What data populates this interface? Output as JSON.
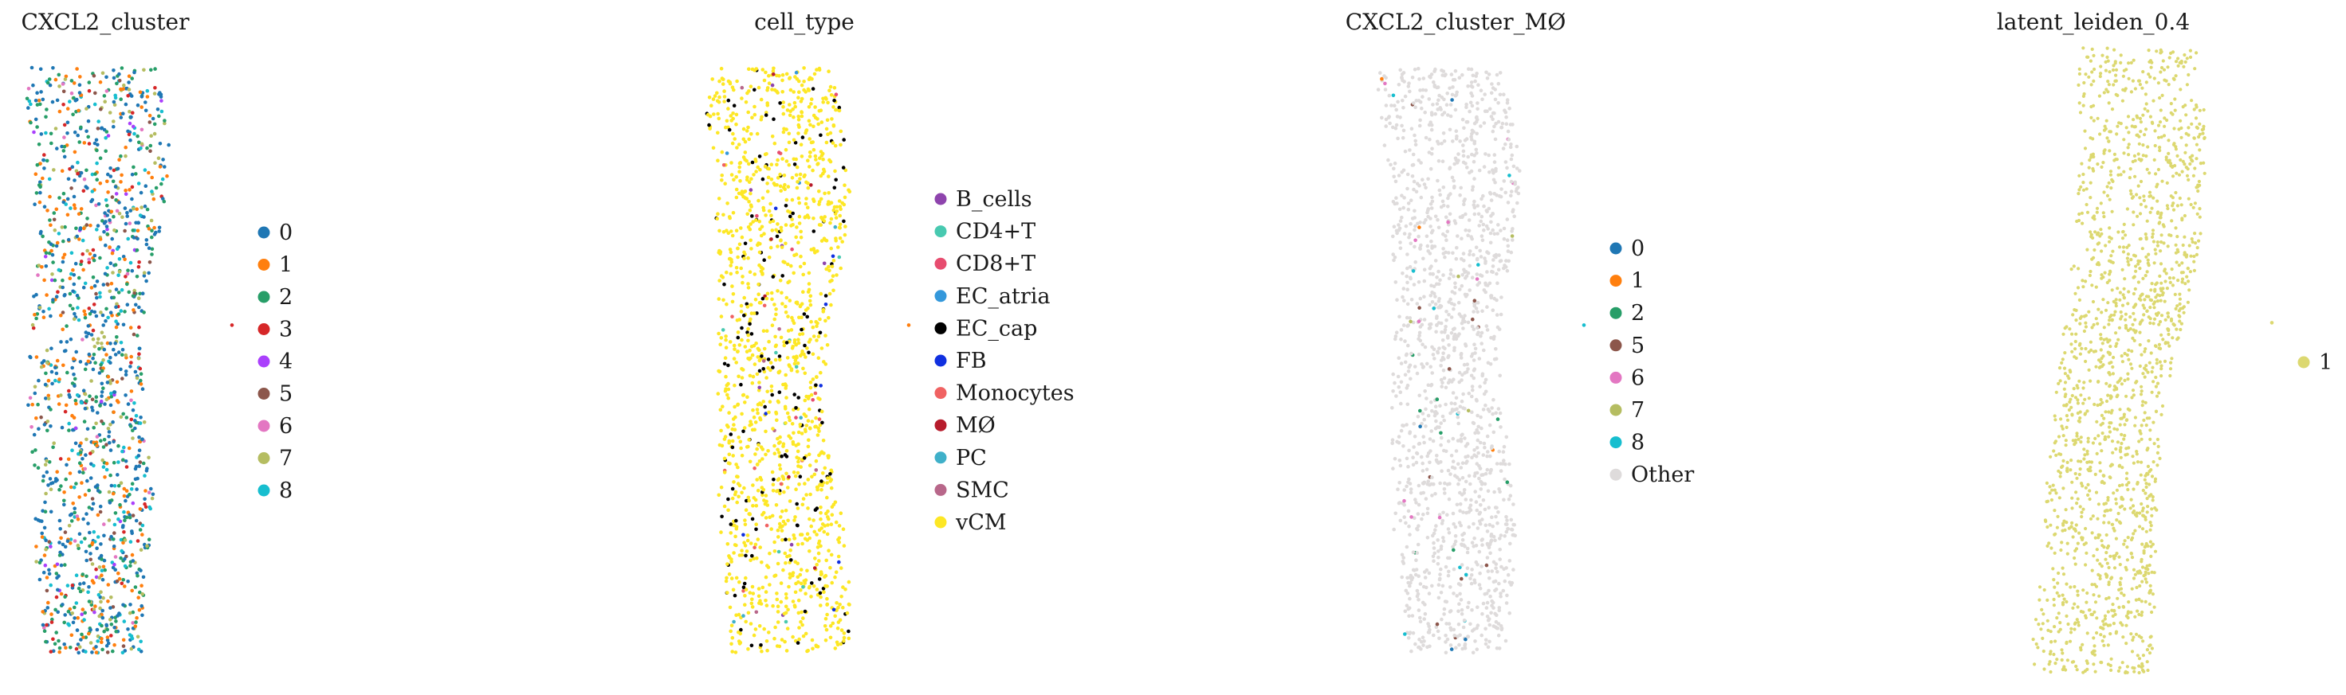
{
  "chart_data": [
    {
      "type": "scatter",
      "title": "CXCL2_cluster",
      "legend": {
        "placement": "right",
        "entries": [
          {
            "label": "0",
            "color": "#1f77b4"
          },
          {
            "label": "1",
            "color": "#ff7f0e"
          },
          {
            "label": "2",
            "color": "#279e68"
          },
          {
            "label": "3",
            "color": "#d62728"
          },
          {
            "label": "4",
            "color": "#aa40fc"
          },
          {
            "label": "5",
            "color": "#8c564b"
          },
          {
            "label": "6",
            "color": "#e377c2"
          },
          {
            "label": "7",
            "color": "#b5bd61"
          },
          {
            "label": "8",
            "color": "#17becf"
          }
        ]
      },
      "axes_visible": false,
      "grid": false
    },
    {
      "type": "scatter",
      "title": "cell_type",
      "legend": {
        "placement": "right",
        "entries": [
          {
            "label": "B_cells",
            "color": "#8e44ad"
          },
          {
            "label": "CD4+T",
            "color": "#48c9b0"
          },
          {
            "label": "CD8+T",
            "color": "#e74c6f"
          },
          {
            "label": "EC_atria",
            "color": "#3498db"
          },
          {
            "label": "EC_cap",
            "color": "#000000"
          },
          {
            "label": "FB",
            "color": "#1030e0"
          },
          {
            "label": "Monocytes",
            "color": "#f06262"
          },
          {
            "label": "MØ",
            "color": "#b71c2c"
          },
          {
            "label": "PC",
            "color": "#3fb0c9"
          },
          {
            "label": "SMC",
            "color": "#b8678a"
          },
          {
            "label": "vCM",
            "color": "#fde725"
          }
        ]
      },
      "axes_visible": false,
      "grid": false
    },
    {
      "type": "scatter",
      "title": "CXCL2_cluster_MØ",
      "legend": {
        "placement": "right",
        "entries": [
          {
            "label": "0",
            "color": "#1f77b4"
          },
          {
            "label": "1",
            "color": "#ff7f0e"
          },
          {
            "label": "2",
            "color": "#279e68"
          },
          {
            "label": "5",
            "color": "#8c564b"
          },
          {
            "label": "6",
            "color": "#e377c2"
          },
          {
            "label": "7",
            "color": "#b5bd61"
          },
          {
            "label": "8",
            "color": "#17becf"
          },
          {
            "label": "Other",
            "color": "#dedbdb"
          }
        ]
      },
      "axes_visible": false,
      "grid": false
    },
    {
      "type": "scatter",
      "title": "latent_leiden_0.4",
      "legend": {
        "placement": "right",
        "entries": [
          {
            "label": "1",
            "color": "#dcd870"
          }
        ]
      },
      "axes_visible": false,
      "grid": false
    }
  ]
}
